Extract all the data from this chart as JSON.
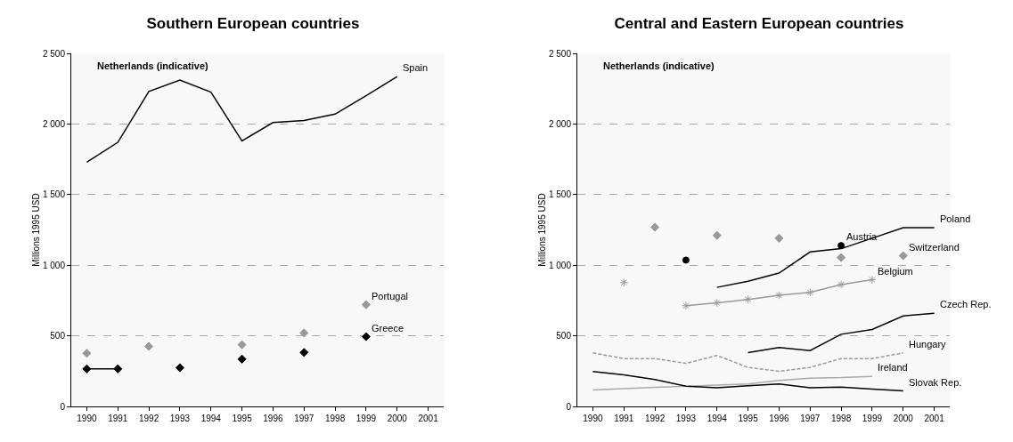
{
  "chart_data": [
    {
      "type": "line",
      "title": "Southern European countries",
      "ylabel": "Millions 1995 USD",
      "categories": [
        "1990",
        "1991",
        "1992",
        "1993",
        "1994",
        "1995",
        "1996",
        "1997",
        "1998",
        "1999",
        "2000",
        "2001"
      ],
      "ylim": [
        0,
        2500
      ],
      "yticks": [
        0,
        {
          "value": 500,
          "label": "500"
        },
        {
          "value": 1000,
          "label": "1 000"
        },
        {
          "value": 1500,
          "label": "1 500"
        },
        {
          "value": 2000,
          "label": "2 000"
        },
        {
          "value": 2500,
          "label": "2 500"
        }
      ],
      "grid": "y",
      "legend": false,
      "annotations": [
        "Netherlands (indicative)"
      ],
      "series": [
        {
          "name": "Spain",
          "color": "#000000",
          "marker": "none",
          "values": [
            1730,
            1870,
            2230,
            2310,
            2225,
            1880,
            2010,
            2025,
            2070,
            2200,
            2335,
            null
          ]
        },
        {
          "name": "Portugal",
          "type": "scatter",
          "color": "#999999",
          "marker": "diamond",
          "values": [
            376,
            null,
            425,
            null,
            null,
            437,
            null,
            520,
            null,
            720,
            null,
            null
          ]
        },
        {
          "name": "Greece",
          "type": "line",
          "color": "#000000",
          "marker": "diamond",
          "values": [
            266,
            266,
            null,
            274,
            null,
            335,
            null,
            382,
            null,
            494,
            null,
            null
          ]
        }
      ]
    },
    {
      "type": "line",
      "title": "Central and Eastern European countries",
      "ylabel": "Millions 1995 USD",
      "categories": [
        "1990",
        "1991",
        "1992",
        "1993",
        "1994",
        "1995",
        "1996",
        "1997",
        "1998",
        "1999",
        "2000",
        "2001"
      ],
      "ylim": [
        0,
        2500
      ],
      "yticks": [
        0,
        {
          "value": 500,
          "label": "500"
        },
        {
          "value": 1000,
          "label": "1 000"
        },
        {
          "value": 1500,
          "label": "1 500"
        },
        {
          "value": 2000,
          "label": "2 000"
        },
        {
          "value": 2500,
          "label": "2 500"
        }
      ],
      "grid": "y",
      "legend": false,
      "annotations": [
        "Netherlands (indicative)"
      ],
      "series": [
        {
          "name": "Switzerland",
          "type": "scatter",
          "color": "#999999",
          "marker": "diamond",
          "values": [
            null,
            null,
            1269,
            null,
            1211,
            null,
            1191,
            null,
            1054,
            null,
            1067,
            null
          ]
        },
        {
          "name": "Austria",
          "type": "scatter",
          "color": "#000000",
          "marker": "circle",
          "values": [
            null,
            null,
            null,
            1036,
            null,
            null,
            null,
            null,
            1139,
            null,
            null,
            null
          ]
        },
        {
          "name": "Poland",
          "color": "#000000",
          "marker": "none",
          "values": [
            null,
            null,
            null,
            null,
            843,
            886,
            944,
            1094,
            1117,
            1191,
            1265,
            1265
          ]
        },
        {
          "name": "Belgium",
          "type": "line",
          "color": "#999999",
          "marker": "cross",
          "values": [
            null,
            877,
            null,
            713,
            733,
            758,
            787,
            807,
            863,
            897,
            null,
            null
          ]
        },
        {
          "name": "Czech Rep.",
          "type": "line",
          "color": "#000000",
          "marker": "none",
          "values": [
            null,
            null,
            null,
            null,
            null,
            381,
            417,
            395,
            511,
            545,
            641,
            659
          ]
        },
        {
          "name": "Hungary",
          "type": "line",
          "color": "#999999",
          "marker": "none",
          "line_style": "dashed",
          "values": [
            379,
            339,
            339,
            305,
            361,
            276,
            249,
            276,
            339,
            339,
            379,
            null
          ]
        },
        {
          "name": "Ireland",
          "type": "line",
          "color": "#aaaaaa",
          "marker": "none",
          "values": [
            117,
            126,
            135,
            143,
            151,
            159,
            184,
            200,
            204,
            213,
            null,
            null
          ]
        },
        {
          "name": "Slovak Rep.",
          "type": "line",
          "color": "#000000",
          "marker": "none",
          "values": [
            247,
            224,
            191,
            143,
            132,
            146,
            159,
            132,
            137,
            123,
            110,
            null
          ]
        }
      ]
    }
  ]
}
